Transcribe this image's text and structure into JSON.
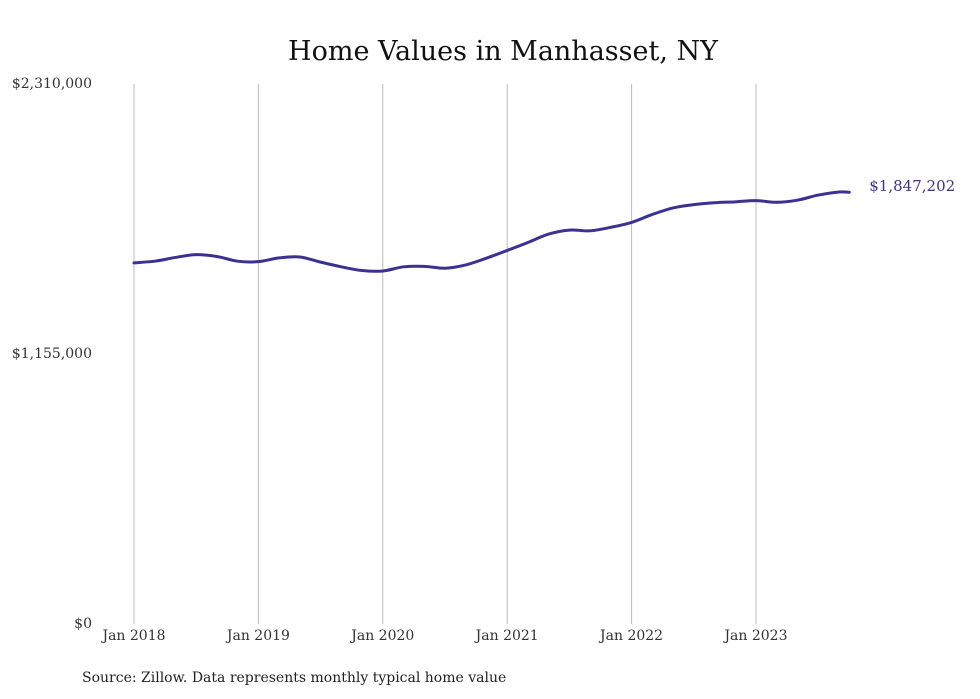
{
  "chart_data": {
    "type": "line",
    "title": "Home Values in Manhasset, NY",
    "xlabel": "",
    "ylabel": "",
    "x_ticks": [
      "Jan 2018",
      "Jan 2019",
      "Jan 2020",
      "Jan 2021",
      "Jan 2022",
      "Jan 2023"
    ],
    "y_ticks": [
      "$0",
      "$1,155,000",
      "$2,310,000"
    ],
    "ylim": [
      0,
      2310000
    ],
    "xlim": [
      "2018-01",
      "2023-12"
    ],
    "grid": "vertical",
    "legend": "none",
    "series": [
      {
        "color": "#3b3194",
        "end_label": "$1,847,202",
        "points": [
          {
            "x": "2018-01",
            "y": 1545000
          },
          {
            "x": "2018-03",
            "y": 1552000
          },
          {
            "x": "2018-05",
            "y": 1568000
          },
          {
            "x": "2018-07",
            "y": 1580000
          },
          {
            "x": "2018-09",
            "y": 1572000
          },
          {
            "x": "2018-11",
            "y": 1552000
          },
          {
            "x": "2019-01",
            "y": 1550000
          },
          {
            "x": "2019-03",
            "y": 1566000
          },
          {
            "x": "2019-05",
            "y": 1570000
          },
          {
            "x": "2019-07",
            "y": 1548000
          },
          {
            "x": "2019-09",
            "y": 1528000
          },
          {
            "x": "2019-11",
            "y": 1512000
          },
          {
            "x": "2020-01",
            "y": 1510000
          },
          {
            "x": "2020-03",
            "y": 1528000
          },
          {
            "x": "2020-05",
            "y": 1530000
          },
          {
            "x": "2020-07",
            "y": 1522000
          },
          {
            "x": "2020-09",
            "y": 1536000
          },
          {
            "x": "2020-11",
            "y": 1565000
          },
          {
            "x": "2021-01",
            "y": 1598000
          },
          {
            "x": "2021-03",
            "y": 1632000
          },
          {
            "x": "2021-05",
            "y": 1668000
          },
          {
            "x": "2021-07",
            "y": 1685000
          },
          {
            "x": "2021-09",
            "y": 1682000
          },
          {
            "x": "2021-11",
            "y": 1697000
          },
          {
            "x": "2022-01",
            "y": 1718000
          },
          {
            "x": "2022-03",
            "y": 1752000
          },
          {
            "x": "2022-05",
            "y": 1780000
          },
          {
            "x": "2022-07",
            "y": 1794000
          },
          {
            "x": "2022-09",
            "y": 1802000
          },
          {
            "x": "2022-11",
            "y": 1806000
          },
          {
            "x": "2023-01",
            "y": 1811000
          },
          {
            "x": "2023-03",
            "y": 1804000
          },
          {
            "x": "2023-05",
            "y": 1813000
          },
          {
            "x": "2023-07",
            "y": 1835000
          },
          {
            "x": "2023-09",
            "y": 1848000
          },
          {
            "x": "2023-10",
            "y": 1847202
          }
        ]
      }
    ],
    "source_note": "Source: Zillow. Data represents monthly typical home value"
  }
}
